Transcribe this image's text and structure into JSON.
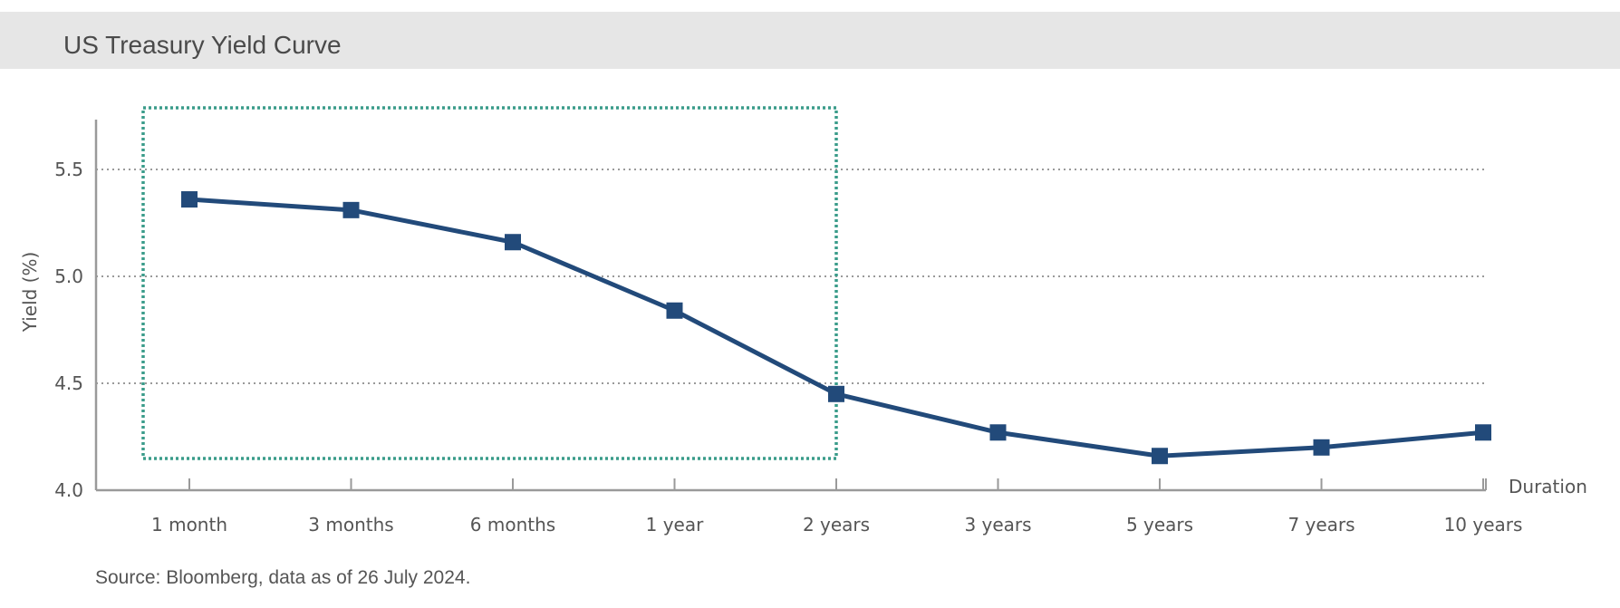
{
  "title": "US Treasury Yield Curve",
  "source": "Source: Bloomberg, data as of 26 July 2024.",
  "chart_data": {
    "type": "line",
    "title": "US Treasury Yield Curve",
    "xlabel": "Duration",
    "ylabel": "Yield (%)",
    "categories": [
      "1 month",
      "3 months",
      "6 months",
      "1 year",
      "2 years",
      "3 years",
      "5 years",
      "7 years",
      "10 years"
    ],
    "values": [
      5.36,
      5.31,
      5.16,
      4.84,
      4.45,
      4.27,
      4.16,
      4.2,
      4.27
    ],
    "ylim": [
      4.0,
      5.7
    ],
    "yticks": [
      4.0,
      4.5,
      5.0,
      5.5
    ],
    "ytick_labels": [
      "4.0",
      "4.5",
      "5.0",
      "5.5"
    ],
    "grid": "horizontal dotted",
    "highlight": {
      "from_category": "1 month",
      "to_category": "2 years"
    },
    "colors": {
      "line": "#224a7a",
      "highlight": "#3a9c8a",
      "grid": "#9a9a9a",
      "axis": "#9a9a9a"
    }
  }
}
